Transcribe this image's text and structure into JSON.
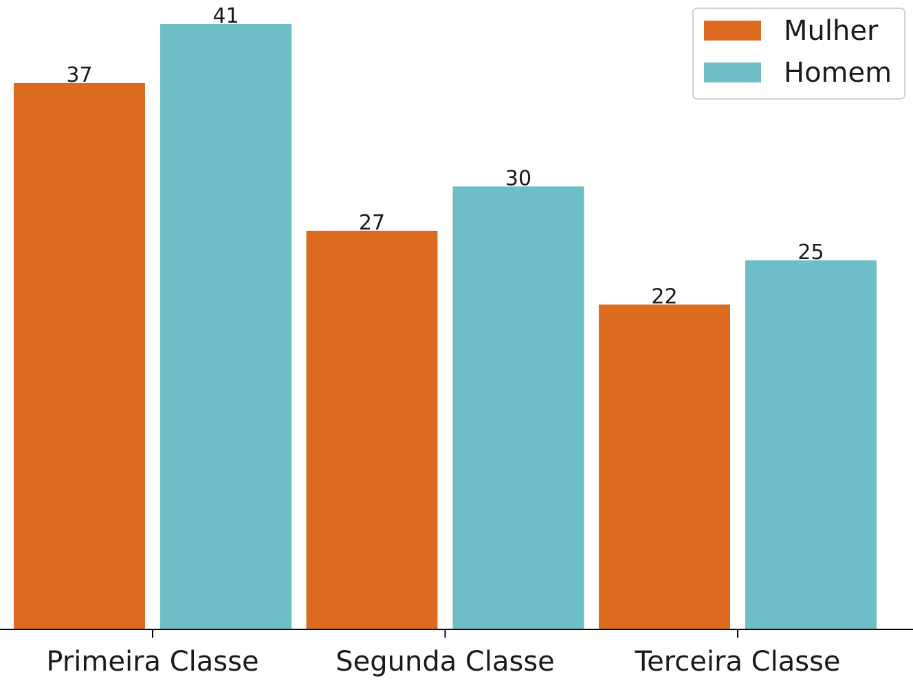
{
  "chart_data": {
    "type": "bar",
    "categories": [
      "Primeira Classe",
      "Segunda Classe",
      "Terceira Classe"
    ],
    "series": [
      {
        "name": "Mulher",
        "values": [
          37,
          27,
          22
        ],
        "color": "#dc6b20"
      },
      {
        "name": "Homem",
        "values": [
          41,
          30,
          25
        ],
        "color": "#6dbec6"
      }
    ],
    "title": "",
    "xlabel": "",
    "ylabel": "",
    "ylim": [
      0,
      41
    ],
    "grid": false,
    "legend_position": "top-right",
    "y_axis_visible": false,
    "data_labels": true
  }
}
